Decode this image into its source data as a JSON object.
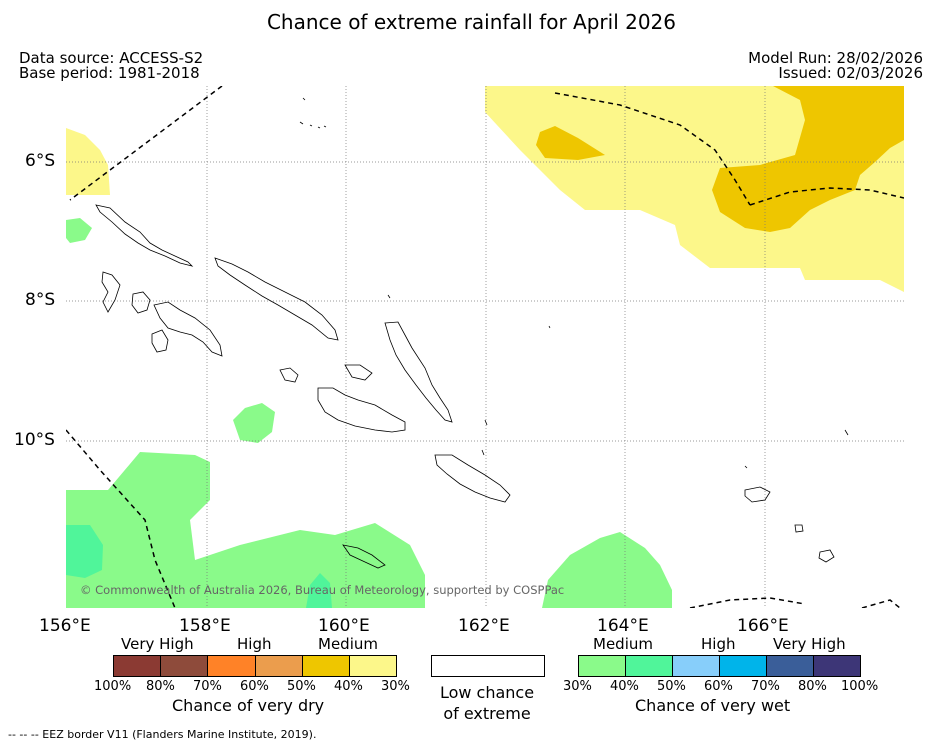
{
  "title": "Chance of extreme rainfall for April 2026",
  "meta": {
    "data_source": "Data source: ACCESS-S2",
    "base_period": "Base period: 1981-2018",
    "model_run": "Model Run: 28/02/2026",
    "issued": "Issued: 02/03/2026"
  },
  "map": {
    "lat_labels": [
      "6°S",
      "8°S",
      "10°S"
    ],
    "lon_labels": [
      "156°E",
      "158°E",
      "160°E",
      "162°E",
      "164°E",
      "166°E"
    ],
    "copyright": "© Commonwealth of Australia 2026, Bureau of Meteorology, supported by COSPPac"
  },
  "legend": {
    "dry": {
      "categories": [
        "Very High",
        "High",
        "Medium"
      ],
      "colors": [
        "#8b3a33",
        "#8e4b3b",
        "#ff8227",
        "#eb9d4d",
        "#eec600",
        "#fcf78a"
      ],
      "ticks": [
        "100%",
        "80%",
        "70%",
        "60%",
        "50%",
        "40%",
        "30%"
      ],
      "caption": "Chance of very dry"
    },
    "low": {
      "caption_line1": "Low chance",
      "caption_line2": "of extreme"
    },
    "wet": {
      "categories": [
        "Medium",
        "High",
        "Very High"
      ],
      "colors": [
        "#8afa8a",
        "#50f59a",
        "#87cefa",
        "#00b4ea",
        "#3a5e99",
        "#3d3677"
      ],
      "ticks": [
        "30%",
        "40%",
        "50%",
        "60%",
        "70%",
        "80%",
        "100%"
      ],
      "caption": "Chance of very wet"
    }
  },
  "eez_note": "--  --  -- EEZ border V11 (Flanders Marine Institute, 2019)."
}
